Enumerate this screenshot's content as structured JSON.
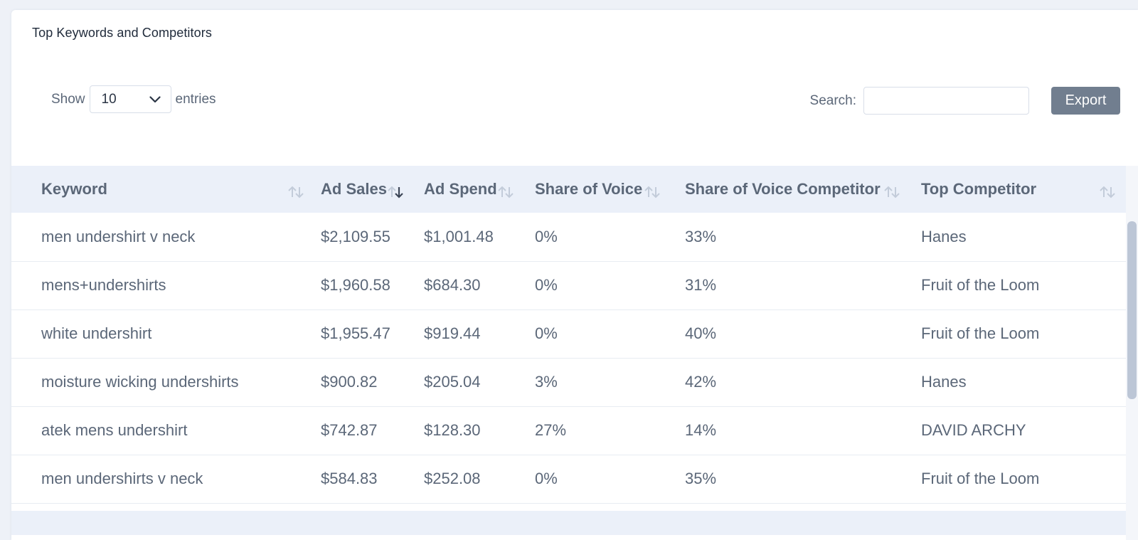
{
  "card": {
    "title": "Top Keywords and Competitors"
  },
  "length": {
    "show_label": "Show",
    "selected": "10",
    "entries_label": "entries"
  },
  "search": {
    "label": "Search:",
    "value": ""
  },
  "export_label": "Export",
  "table": {
    "columns": [
      {
        "label": "Keyword",
        "sort": "none"
      },
      {
        "label": "Ad Sales",
        "sort": "desc"
      },
      {
        "label": "Ad Spend",
        "sort": "none"
      },
      {
        "label": "Share of Voice",
        "sort": "none"
      },
      {
        "label": "Share of Voice Competitor",
        "sort": "none"
      },
      {
        "label": "Top Competitor",
        "sort": "none"
      }
    ],
    "rows": [
      [
        "men undershirt v neck",
        "$2,109.55",
        "$1,001.48",
        "0%",
        "33%",
        "Hanes"
      ],
      [
        "mens+undershirts",
        "$1,960.58",
        "$684.30",
        "0%",
        "31%",
        "Fruit of the Loom"
      ],
      [
        "white undershirt",
        "$1,955.47",
        "$919.44",
        "0%",
        "40%",
        "Fruit of the Loom"
      ],
      [
        "moisture wicking undershirts",
        "$900.82",
        "$205.04",
        "3%",
        "42%",
        "Hanes"
      ],
      [
        "atek mens undershirt",
        "$742.87",
        "$128.30",
        "27%",
        "14%",
        "DAVID ARCHY"
      ],
      [
        "men undershirts v neck",
        "$584.83",
        "$252.08",
        "0%",
        "35%",
        "Fruit of the Loom"
      ]
    ]
  },
  "colors": {
    "header_bg": "#ebf0f9",
    "text": "#5b6778",
    "export_bg": "#717e8f",
    "sort_inactive": "#c3ccda",
    "sort_active": "#3c4657"
  }
}
